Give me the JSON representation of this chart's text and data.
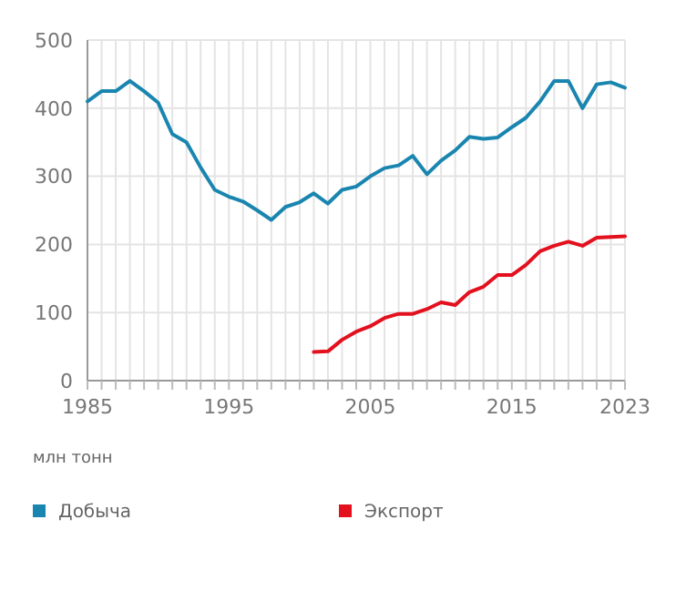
{
  "chart_data": {
    "type": "line",
    "ylabel": "млн тонн",
    "x": [
      1985,
      1986,
      1987,
      1988,
      1989,
      1990,
      1991,
      1992,
      1993,
      1994,
      1995,
      1996,
      1997,
      1998,
      1999,
      2000,
      2001,
      2002,
      2003,
      2004,
      2005,
      2006,
      2007,
      2008,
      2009,
      2010,
      2011,
      2012,
      2013,
      2014,
      2015,
      2016,
      2017,
      2018,
      2019,
      2020,
      2021,
      2022,
      2023
    ],
    "series": [
      {
        "name": "Добыча",
        "color": "#1a86b0",
        "values": [
          410,
          425,
          425,
          440,
          425,
          408,
          362,
          350,
          313,
          280,
          270,
          263,
          250,
          236,
          255,
          262,
          275,
          260,
          280,
          285,
          300,
          312,
          316,
          330,
          303,
          323,
          338,
          358,
          355,
          357,
          372,
          386,
          410,
          440,
          440,
          400,
          435,
          438,
          430
        ]
      },
      {
        "name": "Экспорт",
        "color": "#e3101e",
        "values": [
          null,
          null,
          null,
          null,
          null,
          null,
          null,
          null,
          null,
          null,
          null,
          null,
          null,
          null,
          null,
          null,
          42,
          43,
          60,
          72,
          80,
          92,
          98,
          98,
          105,
          115,
          111,
          130,
          138,
          155,
          155,
          170,
          190,
          198,
          204,
          198,
          210,
          211,
          212
        ]
      }
    ],
    "xlim": [
      1985,
      2023
    ],
    "xticks": [
      1985,
      {
        "value": 1986,
        "label": null
      },
      {
        "value": 1987,
        "label": null
      },
      {
        "value": 1988,
        "label": null
      },
      {
        "value": 1989,
        "label": null
      },
      {
        "value": 1990,
        "label": null
      },
      {
        "value": 1991,
        "label": null
      },
      {
        "value": 1992,
        "label": null
      },
      {
        "value": 1993,
        "label": null
      },
      {
        "value": 1994,
        "label": null
      },
      1995,
      {
        "value": 1996,
        "label": null
      },
      {
        "value": 1997,
        "label": null
      },
      {
        "value": 1998,
        "label": null
      },
      {
        "value": 1999,
        "label": null
      },
      {
        "value": 2000,
        "label": null
      },
      {
        "value": 2001,
        "label": null
      },
      {
        "value": 2002,
        "label": null
      },
      {
        "value": 2003,
        "label": null
      },
      {
        "value": 2004,
        "label": null
      },
      2005,
      {
        "value": 2006,
        "label": null
      },
      {
        "value": 2007,
        "label": null
      },
      {
        "value": 2008,
        "label": null
      },
      {
        "value": 2009,
        "label": null
      },
      {
        "value": 2010,
        "label": null
      },
      {
        "value": 2011,
        "label": null
      },
      {
        "value": 2012,
        "label": null
      },
      {
        "value": 2013,
        "label": null
      },
      {
        "value": 2014,
        "label": null
      },
      2015,
      {
        "value": 2016,
        "label": null
      },
      {
        "value": 2017,
        "label": null
      },
      {
        "value": 2018,
        "label": null
      },
      {
        "value": 2019,
        "label": null
      },
      {
        "value": 2020,
        "label": null
      },
      {
        "value": 2021,
        "label": null
      },
      {
        "value": 2022,
        "label": null
      },
      2023
    ],
    "ylim": [
      0,
      500
    ],
    "yticks": [
      0,
      100,
      200,
      300,
      400,
      500
    ],
    "grid": true,
    "legend": "bottom",
    "marker": "none",
    "line_style": "solid"
  }
}
